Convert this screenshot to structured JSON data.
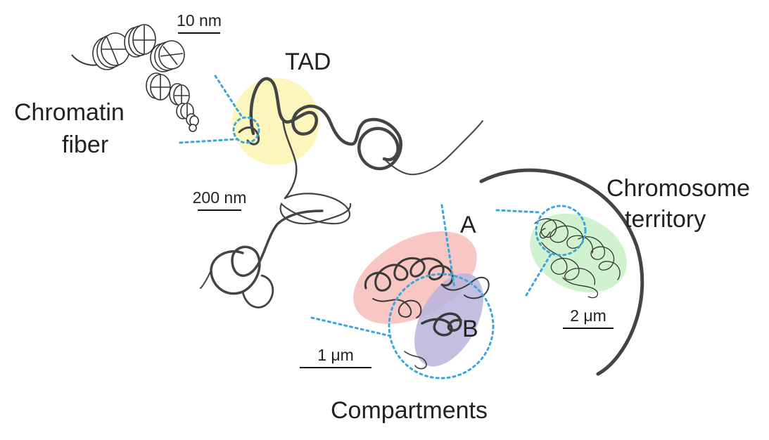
{
  "labels": {
    "chromatin_fiber_line1": "Chromatin",
    "chromatin_fiber_line2": "fiber",
    "tad": "TAD",
    "chromosome_territory_line1": "Chromosome",
    "chromosome_territory_line2": "territory",
    "compartments": "Compartments",
    "compartment_a": "A",
    "compartment_b": "B"
  },
  "scale_bars": {
    "nm10": "10 nm",
    "nm200": "200 nm",
    "um1": "1 μm",
    "um2": "2 μm"
  },
  "colors": {
    "tad_highlight": "#fbf5b0",
    "compartment_a": "#f6b8b4",
    "compartment_b": "#b7b4dc",
    "territory_highlight": "#c9f0c6",
    "zoom_lines": "#3aa6dd",
    "chromatin": "#3b3b3b"
  }
}
